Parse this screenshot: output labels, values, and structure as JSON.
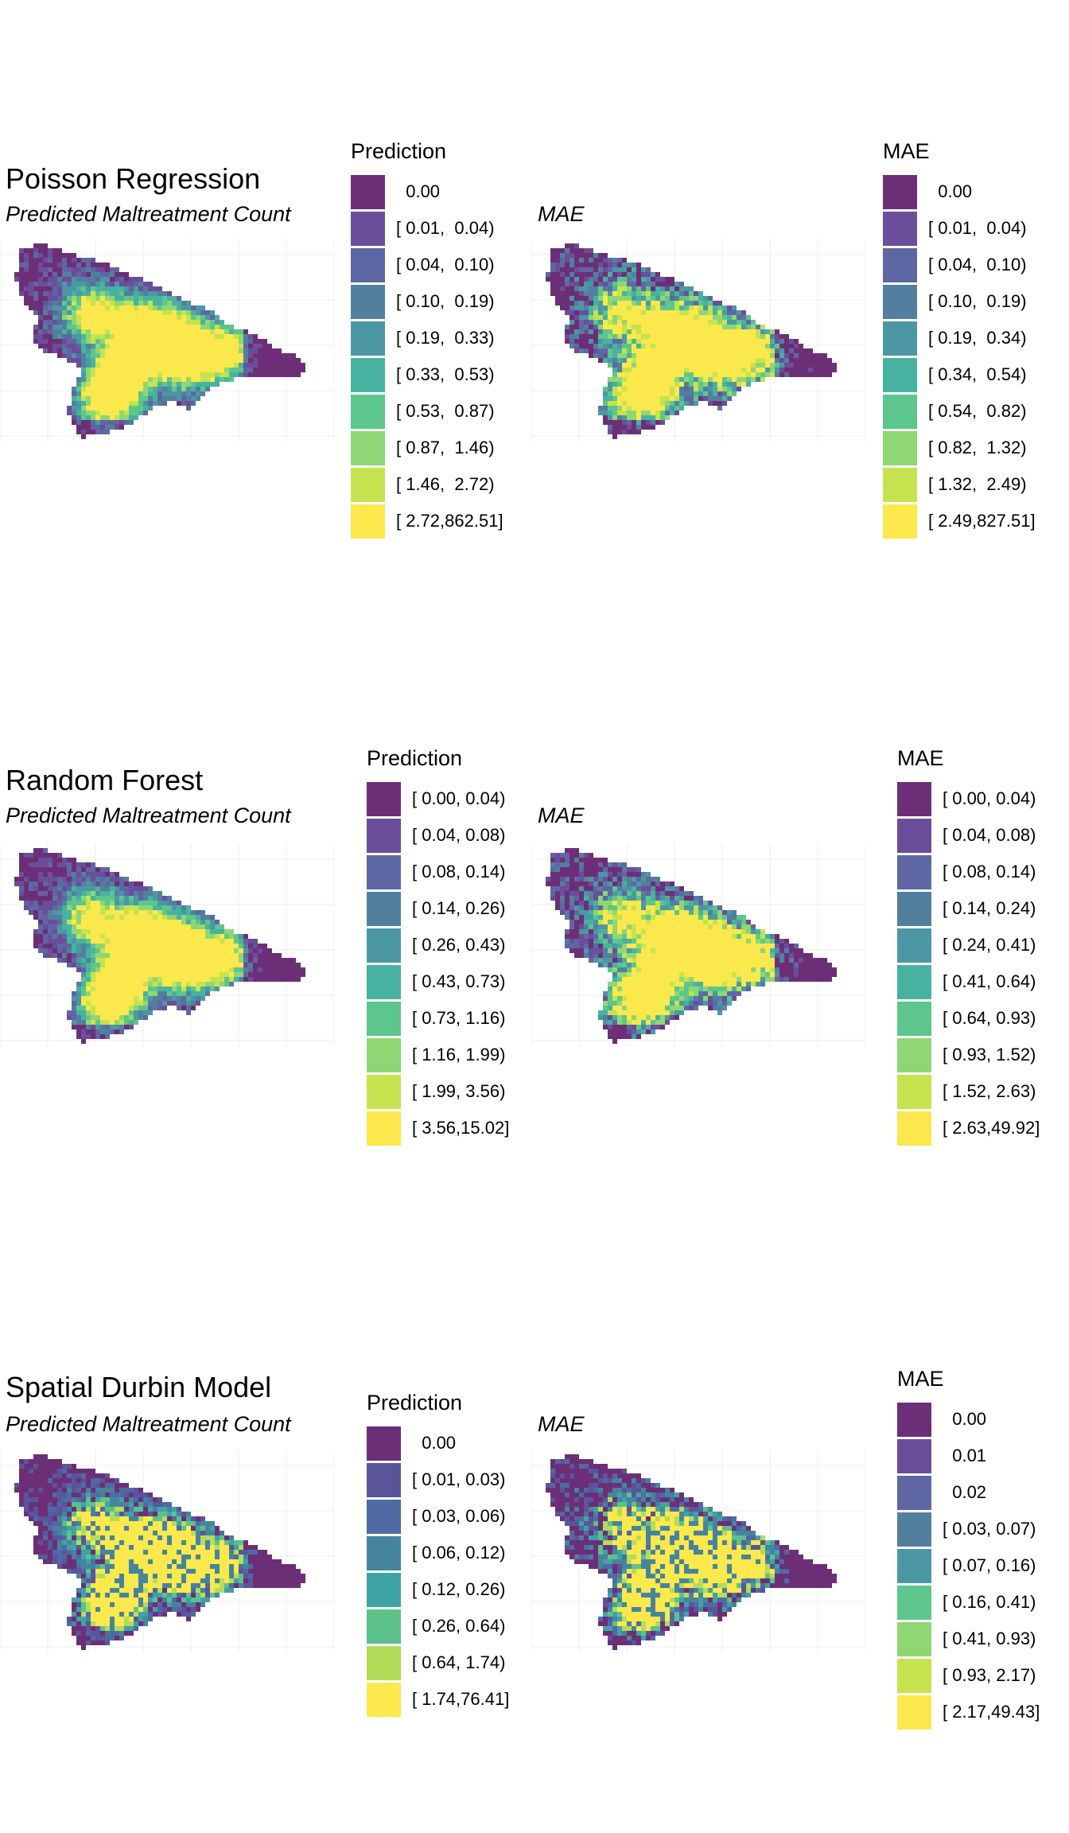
{
  "palette": {
    "8": [
      "#6c2f77",
      "#5a559b",
      "#4f6aa5",
      "#46849e",
      "#3fa3a5",
      "#5cc18b",
      "#b3dc5b",
      "#fbe84c"
    ],
    "10": [
      "#6c2f77",
      "#6a4e9a",
      "#5e67a3",
      "#537f9e",
      "#4c97a4",
      "#47b2a0",
      "#5dc68c",
      "#8fd675",
      "#c5e34f",
      "#fbe84c"
    ]
  },
  "panels": [
    {
      "title": "Poisson Regression",
      "prediction_subtitle": "Predicted Maltreatment Count",
      "mae_subtitle": "MAE",
      "prediction_legend": {
        "title": "Prediction",
        "labels": [
          "0.00",
          "[ 0.01,  0.04)",
          "[ 0.04,  0.10)",
          "[ 0.10,  0.19)",
          "[ 0.19,  0.33)",
          "[ 0.33,  0.53)",
          "[ 0.53,  0.87)",
          "[ 0.87,  1.46)",
          "[ 1.46,  2.72)",
          "[ 2.72,862.51]"
        ]
      },
      "mae_legend": {
        "title": "MAE",
        "labels": [
          "0.00",
          "[ 0.01,  0.04)",
          "[ 0.04,  0.10)",
          "[ 0.10,  0.19)",
          "[ 0.19,  0.34)",
          "[ 0.34,  0.54)",
          "[ 0.54,  0.82)",
          "[ 0.82,  1.32)",
          "[ 1.32,  2.49)",
          "[ 2.49,827.51]"
        ]
      }
    },
    {
      "title": "Random Forest",
      "prediction_subtitle": "Predicted Maltreatment Count",
      "mae_subtitle": "MAE",
      "prediction_legend": {
        "title": "Prediction",
        "labels": [
          "[ 0.00, 0.04)",
          "[ 0.04, 0.08)",
          "[ 0.08, 0.14)",
          "[ 0.14, 0.26)",
          "[ 0.26, 0.43)",
          "[ 0.43, 0.73)",
          "[ 0.73, 1.16)",
          "[ 1.16, 1.99)",
          "[ 1.99, 3.56)",
          "[ 3.56,15.02]"
        ]
      },
      "mae_legend": {
        "title": "MAE",
        "labels": [
          "[ 0.00, 0.04)",
          "[ 0.04, 0.08)",
          "[ 0.08, 0.14)",
          "[ 0.14, 0.24)",
          "[ 0.24, 0.41)",
          "[ 0.41, 0.64)",
          "[ 0.64, 0.93)",
          "[ 0.93, 1.52)",
          "[ 1.52, 2.63)",
          "[ 2.63,49.92]"
        ]
      }
    },
    {
      "title": "Spatial Durbin Model",
      "prediction_subtitle": "Predicted Maltreatment Count",
      "mae_subtitle": "MAE",
      "prediction_legend": {
        "title": "Prediction",
        "labels": [
          "0.00",
          "[ 0.01, 0.03)",
          "[ 0.03, 0.06)",
          "[ 0.06, 0.12)",
          "[ 0.12, 0.26)",
          "[ 0.26, 0.64)",
          "[ 0.64, 1.74)",
          "[ 1.74,76.41]"
        ]
      },
      "mae_legend": {
        "title": "MAE",
        "labels": [
          "0.00",
          "0.01",
          "0.02",
          "[ 0.03, 0.07)",
          "[ 0.07, 0.16)",
          "[ 0.16, 0.41)",
          "[ 0.41, 0.93)",
          "[ 0.93, 2.17)",
          "[ 2.17,49.43]"
        ]
      }
    }
  ]
}
